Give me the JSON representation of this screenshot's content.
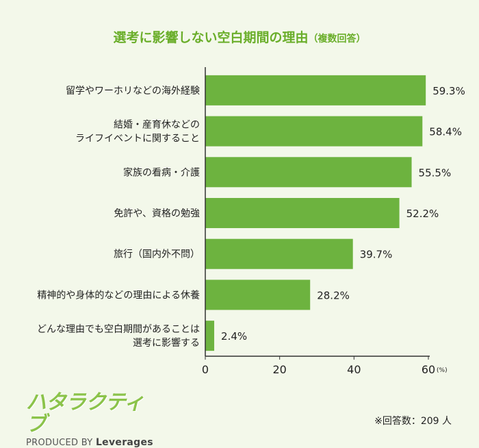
{
  "title_main": "選考に影響しない空白期間の理由",
  "title_sub": "（複数回答）",
  "chart_data": {
    "type": "bar",
    "orientation": "horizontal",
    "categories": [
      "留学やワーホリなどの海外経験",
      "結婚・産育休などの\nライフイベントに関すること",
      "家族の看病・介護",
      "免許や、資格の勉強",
      "旅行（国内外不問）",
      "精神的や身体的などの理由による休養",
      "どんな理由でも空白期間があることは\n選考に影響する"
    ],
    "values": [
      59.3,
      58.4,
      55.5,
      52.2,
      39.7,
      28.2,
      2.4
    ],
    "value_labels": [
      "59.3%",
      "58.4%",
      "55.5%",
      "52.2%",
      "39.7%",
      "28.2%",
      "2.4%"
    ],
    "xlim": [
      0,
      60
    ],
    "xticks": [
      "0",
      "20",
      "40",
      "60"
    ],
    "xunit": "(%)",
    "bar_color": "#6db33f",
    "grid": false
  },
  "logo": {
    "mark": "ハタラクティブ",
    "produced_by": "PRODUCED BY",
    "brand": "Leverages"
  },
  "note": "※回答数：209 人"
}
